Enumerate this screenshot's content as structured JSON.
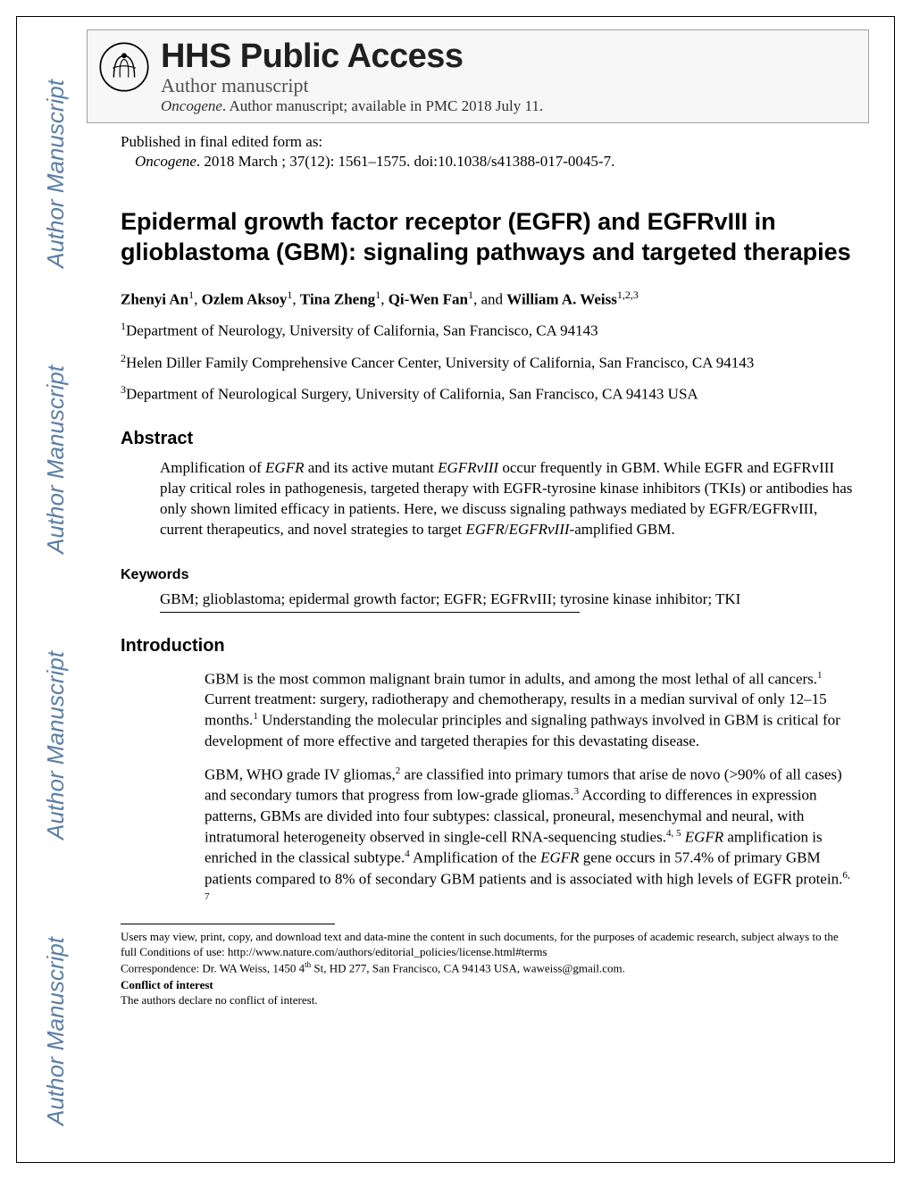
{
  "colors": {
    "watermark": "#5b7fa6",
    "header_bg": "#f7f7f7",
    "header_border": "#a0a0a0",
    "text": "#000000",
    "header_sub": "#505050"
  },
  "typography": {
    "header_title_pt": 38,
    "article_title_pt": 27,
    "section_head_pt": 20,
    "body_pt": 17,
    "footnote_pt": 13,
    "watermark_pt": 26
  },
  "watermark": {
    "text": "Author Manuscript"
  },
  "header": {
    "title": "HHS Public Access",
    "sub1": "Author manuscript",
    "journal_italic": "Oncogene",
    "sub2_rest": ". Author manuscript; available in PMC 2018 July 11."
  },
  "pubinfo": {
    "line1": "Published in final edited form as:",
    "journal_italic": "Oncogene",
    "line2_rest": ". 2018 March ; 37(12): 1561–1575. doi:10.1038/s41388-017-0045-7."
  },
  "article_title": "Epidermal growth factor receptor (EGFR) and EGFRvIII in glioblastoma (GBM): signaling pathways and targeted therapies",
  "authors_html": "<b>Zhenyi An</b><sup>1</sup>, <b>Ozlem Aksoy</b><sup>1</sup>, <b>Tina Zheng</b><sup>1</sup>, <b>Qi-Wen Fan</b><sup>1</sup>, and <b>William A. Weiss</b><sup>1,2,3</sup>",
  "affiliations": [
    "<sup>1</sup>Department of Neurology, University of California, San Francisco, CA 94143",
    "<sup>2</sup>Helen Diller Family Comprehensive Cancer Center, University of California, San Francisco, CA 94143",
    "<sup>3</sup>Department of Neurological Surgery, University of California, San Francisco, CA 94143 USA"
  ],
  "abstract": {
    "head": "Abstract",
    "body_html": "Amplification of <span class=\"it\">EGFR</span> and its active mutant <span class=\"it\">EGFRvIII</span> occur frequently in GBM. While EGFR and EGFRvIII play critical roles in pathogenesis, targeted therapy with EGFR-tyrosine kinase inhibitors (TKIs) or antibodies has only shown limited efficacy in patients. Here, we discuss signaling pathways mediated by EGFR/EGFRvIII, current therapeutics, and novel strategies to target <span class=\"it\">EGFR</span>/<span class=\"it\">EGFRvIII</span>-amplified GBM."
  },
  "keywords": {
    "head": "Keywords",
    "body": "GBM; glioblastoma; epidermal growth factor; EGFR; EGFRvIII; tyrosine kinase inhibitor; TKI"
  },
  "introduction": {
    "head": "Introduction",
    "paragraphs_html": [
      "GBM is the most common malignant brain tumor in adults, and among the most lethal of all cancers.<sup>1</sup> Current treatment: surgery, radiotherapy and chemotherapy, results in a median survival of only 12–15 months.<sup>1</sup> Understanding the molecular principles and signaling pathways involved in GBM is critical for development of more effective and targeted therapies for this devastating disease.",
      "GBM, WHO grade IV gliomas,<sup>2</sup> are classified into primary tumors that arise de novo (>90% of all cases) and secondary tumors that progress from low-grade gliomas.<sup>3</sup> According to differences in expression patterns, GBMs are divided into four subtypes: classical, proneural, mesenchymal and neural, with intratumoral heterogeneity observed in single-cell RNA-sequencing studies.<sup>4, 5</sup> <span class=\"it\">EGFR</span> amplification is enriched in the classical subtype.<sup>4</sup> Amplification of the <span class=\"it\">EGFR</span> gene occurs in 57.4% of primary GBM patients compared to 8% of secondary GBM patients and is associated with high levels of EGFR protein.<sup>6, 7</sup>"
    ]
  },
  "footnotes": {
    "terms": "Users may view, print, copy, and download text and data-mine the content in such documents, for the purposes of academic research, subject always to the full Conditions of use: http://www.nature.com/authors/editorial_policies/license.html#terms",
    "correspondence_html": "Correspondence: Dr. WA Weiss, 1450 4<sup>th</sup> St, HD 277, San Francisco, CA 94143 USA, waweiss@gmail.com.",
    "coi_head": "Conflict of interest",
    "coi_body": "The authors declare no conflict of interest."
  }
}
